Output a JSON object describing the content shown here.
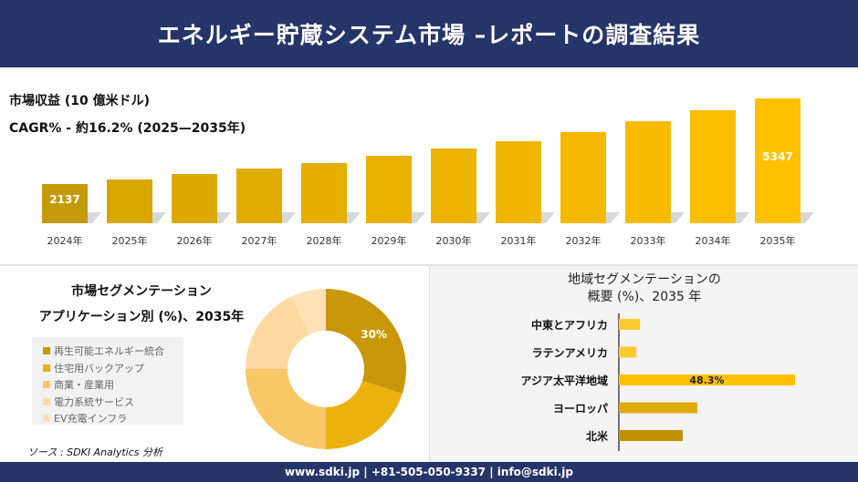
{
  "header": {
    "title": "エネルギー貯蔵システム市場 –レポートの調査結果"
  },
  "revenue": {
    "subtitle1": "市場収益 (10 億米ドル)",
    "subtitle2": "CAGR% - 約16.2% (2025—2035年)"
  },
  "segment": {
    "title1": "市場セグメンテーション",
    "title2": "アプリケーション別 (%)、2035年"
  },
  "region": {
    "title1": "地域セグメンテーションの",
    "title2": "概要 (%)、2035 年"
  },
  "source": "ソース : SDKI Analytics 分析",
  "footer": {
    "contact": "www.sdki.jp | +81-505-050-9337 | info@sdki.jp"
  },
  "chart_data": [
    {
      "type": "bar",
      "categories": [
        "2024年",
        "2025年",
        "2026年",
        "2027年",
        "2028年",
        "2029年",
        "2030年",
        "2031年",
        "2032年",
        "2033年",
        "2034年",
        "2035年"
      ],
      "values": [
        2137,
        2308,
        2513,
        2718,
        2922,
        3196,
        3469,
        3742,
        4083,
        4493,
        4903,
        5347
      ],
      "data_labels": {
        "0": "2137",
        "11": "5347"
      },
      "colors": {
        "start": "#c49a0a",
        "end": "#ffc000"
      }
    },
    {
      "type": "pie",
      "donut": true,
      "categories": [
        "再生可能エネルギー統合",
        "住宅用バックアップ",
        "商業・産業用",
        "電力系統サービス",
        "EV充電インフラ"
      ],
      "values": [
        30,
        20,
        25,
        18,
        7
      ],
      "data_labels": {
        "0": "30%"
      },
      "colors": [
        "#c8970a",
        "#ebb20e",
        "#f8c766",
        "#fdd9a2",
        "#fde2b8"
      ],
      "legend": "left"
    },
    {
      "type": "bar",
      "orientation": "horizontal",
      "categories": [
        "中東とアフリカ",
        "ラテンアメリカ",
        "アジア太平洋地域",
        "ヨーロッパ",
        "北米"
      ],
      "values": [
        5.8,
        4.8,
        48.3,
        21.5,
        17.5
      ],
      "data_labels": {
        "2": "48.3%"
      },
      "colors": [
        "#ffc930",
        "#ffc930",
        "#ffc000",
        "#e0aa0c",
        "#c19104"
      ]
    }
  ]
}
